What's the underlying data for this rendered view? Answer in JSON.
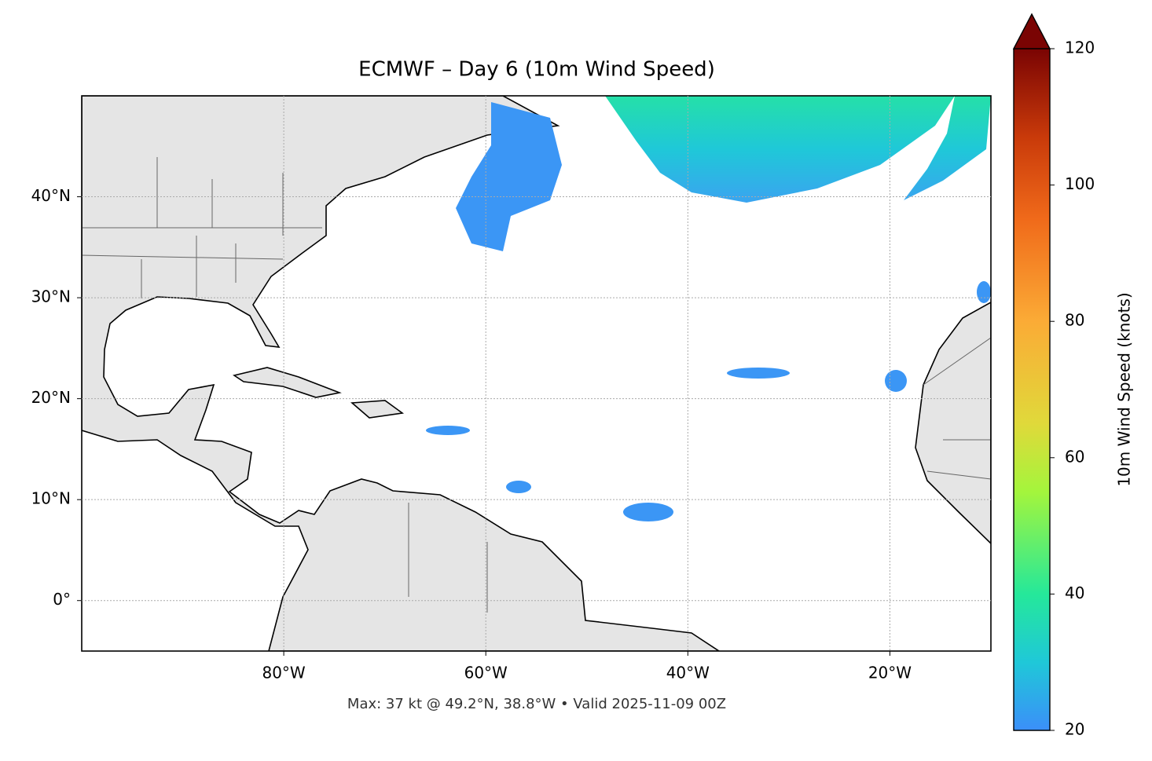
{
  "title": "ECMWF – Day 6 (10m Wind Speed)",
  "footer": "Max: 37 kt @ 49.2°N, 38.8°W • Valid 2025-11-09 00Z",
  "map": {
    "lonlim": [
      -100,
      -10
    ],
    "latlim": [
      -5,
      50
    ],
    "lon_ticks": [
      {
        "value": -80,
        "label": "80°W"
      },
      {
        "value": -60,
        "label": "60°W"
      },
      {
        "value": -40,
        "label": "40°W"
      },
      {
        "value": -20,
        "label": "20°W"
      }
    ],
    "lat_ticks": [
      {
        "value": 0,
        "label": "0°"
      },
      {
        "value": 10,
        "label": "10°N"
      },
      {
        "value": 20,
        "label": "20°N"
      },
      {
        "value": 30,
        "label": "30°N"
      },
      {
        "value": 40,
        "label": "40°N"
      }
    ],
    "grid": true
  },
  "colorbar": {
    "label": "10m Wind Speed (knots)",
    "lim": [
      20,
      120
    ],
    "ticks": [
      20,
      40,
      60,
      80,
      100,
      120
    ],
    "extend": "max"
  }
}
